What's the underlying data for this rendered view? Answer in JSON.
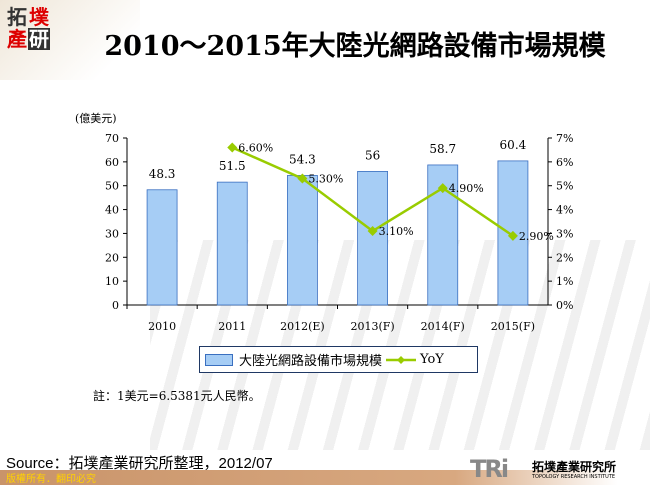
{
  "header": {
    "logo_text": "拓墣產研",
    "title": "2010～2015年大陸光網路設備市場規模"
  },
  "colors": {
    "bar": "#a6cdf5",
    "bar_border": "#3a6fc0",
    "line": "#99cc00"
  },
  "chart_data": {
    "type": "bar+line",
    "title": "2010～2015年大陸光網路設備市場規模",
    "ylabel": "(億美元)",
    "categories": [
      "2010",
      "2011",
      "2012(E)",
      "2013(F)",
      "2014(F)",
      "2015(F)"
    ],
    "ylim": [
      0,
      70
    ],
    "y_ticks": [
      "0",
      "10",
      "20",
      "30",
      "40",
      "50",
      "60",
      "70"
    ],
    "y2lim": [
      0,
      7
    ],
    "y2_ticks": [
      "0%",
      "1%",
      "2%",
      "3%",
      "4%",
      "5%",
      "6%",
      "7%"
    ],
    "grid": false,
    "legend_placement": "bottom",
    "series": [
      {
        "name": "大陸光網路設備市場規模",
        "type": "bar",
        "axis": "left",
        "values": [
          48.3,
          51.5,
          54.3,
          56,
          58.7,
          60.4
        ],
        "labels": [
          "48.3",
          "51.5",
          "54.3",
          "56",
          "58.7",
          "60.4"
        ]
      },
      {
        "name": "YoY",
        "type": "line",
        "axis": "right",
        "values": [
          null,
          6.6,
          5.3,
          3.1,
          4.9,
          2.9
        ],
        "labels": [
          "",
          "6.60%",
          "5.30%",
          "3.10%",
          "4.90%",
          "2.90%"
        ]
      }
    ]
  },
  "note": "註：1美元=6.5381元人民幣。",
  "source": "Source：拓墣產業研究所整理，2012/07",
  "footer": {
    "copyright": "版權所有．翻印必究",
    "brand": "TRi",
    "brand_zh": "拓墣產業研究所",
    "brand_en": "TOPOLOGY RESEARCH INSTITUTE"
  }
}
